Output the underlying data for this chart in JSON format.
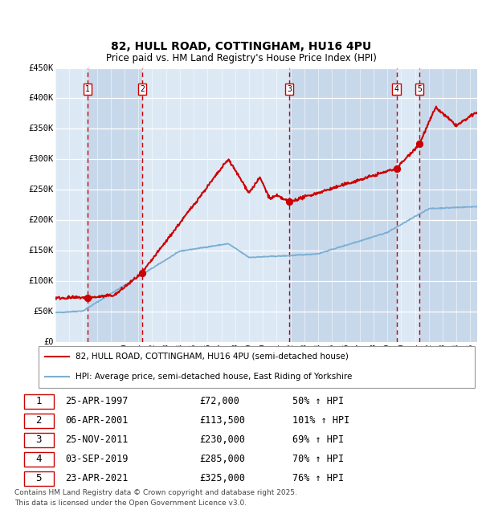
{
  "title": "82, HULL ROAD, COTTINGHAM, HU16 4PU",
  "subtitle": "Price paid vs. HM Land Registry's House Price Index (HPI)",
  "legend_line1": "82, HULL ROAD, COTTINGHAM, HU16 4PU (semi-detached house)",
  "legend_line2": "HPI: Average price, semi-detached house, East Riding of Yorkshire",
  "footer": "Contains HM Land Registry data © Crown copyright and database right 2025.\nThis data is licensed under the Open Government Licence v3.0.",
  "red_color": "#cc0000",
  "blue_color": "#7bafd4",
  "bg_color": "#dce9f5",
  "alt_bg_color": "#c8d8eb",
  "dashed_color": "#cc0000",
  "transactions": [
    {
      "id": 1,
      "date": "25-APR-1997",
      "year": 1997.32,
      "price": 72000,
      "hpi_pct": "50% ↑ HPI"
    },
    {
      "id": 2,
      "date": "06-APR-2001",
      "year": 2001.27,
      "price": 113500,
      "hpi_pct": "101% ↑ HPI"
    },
    {
      "id": 3,
      "date": "25-NOV-2011",
      "year": 2011.9,
      "price": 230000,
      "hpi_pct": "69% ↑ HPI"
    },
    {
      "id": 4,
      "date": "03-SEP-2019",
      "year": 2019.67,
      "price": 285000,
      "hpi_pct": "70% ↑ HPI"
    },
    {
      "id": 5,
      "date": "23-APR-2021",
      "year": 2021.31,
      "price": 325000,
      "hpi_pct": "76% ↑ HPI"
    }
  ],
  "ylim": [
    0,
    450000
  ],
  "xlim": [
    1995.0,
    2025.5
  ],
  "yticks": [
    0,
    50000,
    100000,
    150000,
    200000,
    250000,
    300000,
    350000,
    400000,
    450000
  ],
  "ytick_labels": [
    "£0",
    "£50K",
    "£100K",
    "£150K",
    "£200K",
    "£250K",
    "£300K",
    "£350K",
    "£400K",
    "£450K"
  ]
}
